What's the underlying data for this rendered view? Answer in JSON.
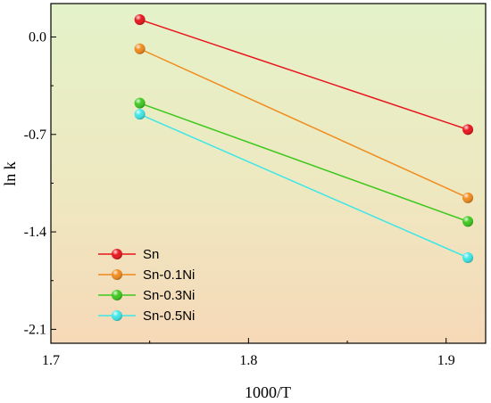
{
  "chart_data": {
    "type": "line",
    "xlabel": "1000/T",
    "ylabel": "ln k",
    "xlim": [
      1.7,
      1.92
    ],
    "ylim": [
      -2.2,
      0.24
    ],
    "xticks": [
      1.7,
      1.8,
      1.9
    ],
    "yticks": [
      0.0,
      -0.7,
      -1.4,
      -2.1
    ],
    "xtick_labels": [
      "1.7",
      "1.8",
      "1.9"
    ],
    "ytick_labels": [
      "0.0",
      "-0.7",
      "-1.4",
      "-2.1"
    ],
    "legend_position": "bottom-left",
    "grid": false,
    "background": "gradient green-to-orange",
    "series": [
      {
        "name": "Sn",
        "color": "#e8141c",
        "x": [
          1.745,
          1.911
        ],
        "y": [
          0.125,
          -0.665
        ]
      },
      {
        "name": "Sn-0.1Ni",
        "color": "#f08a1c",
        "x": [
          1.745,
          1.911
        ],
        "y": [
          -0.085,
          -1.155
        ]
      },
      {
        "name": "Sn-0.3Ni",
        "color": "#3ec81e",
        "x": [
          1.745,
          1.911
        ],
        "y": [
          -0.475,
          -1.325
        ]
      },
      {
        "name": "Sn-0.5Ni",
        "color": "#3ee6e6",
        "x": [
          1.745,
          1.911
        ],
        "y": [
          -0.555,
          -1.585
        ]
      }
    ]
  }
}
